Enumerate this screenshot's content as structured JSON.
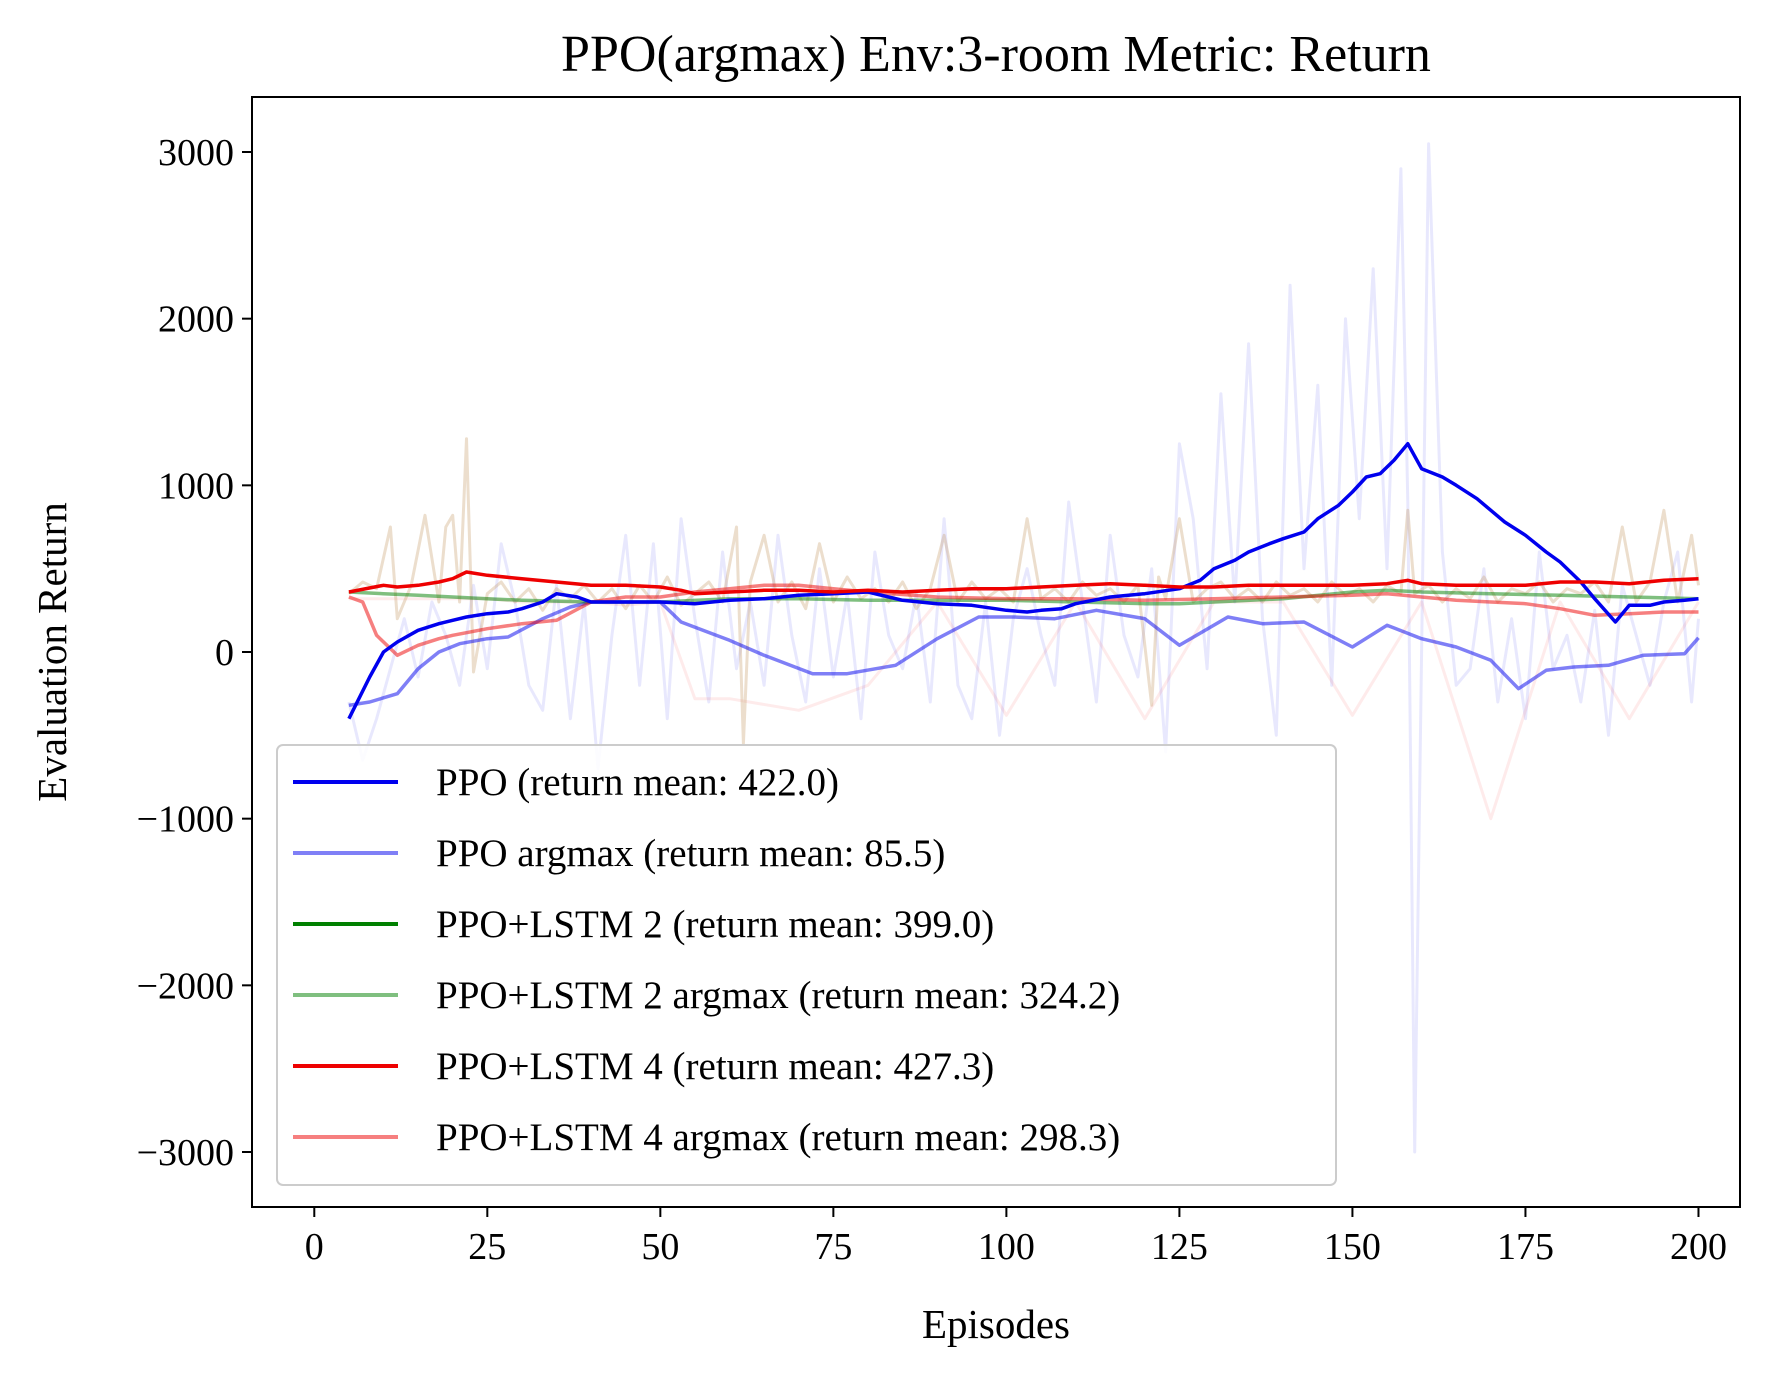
{
  "chart_data": {
    "type": "line",
    "title": "PPO(argmax)  Env:3-room  Metric: Return",
    "xlabel": "Episodes",
    "ylabel": "Evaluation Return",
    "xlim": [
      -9,
      206
    ],
    "ylim": [
      -3330,
      3330
    ],
    "xticks": [
      0,
      25,
      50,
      75,
      100,
      125,
      150,
      175,
      200
    ],
    "yticks": [
      -3000,
      -2000,
      -1000,
      0,
      1000,
      2000,
      3000
    ],
    "ytick_labels": [
      "−3000",
      "−2000",
      "−1000",
      "0",
      "1000",
      "2000",
      "3000"
    ],
    "grid": false,
    "legend_position": "lower-left",
    "series": [
      {
        "name": "PPO (return mean: 422.0)",
        "color": "#0000ee",
        "opacity": 1.0,
        "width": 3.5,
        "x": [
          5,
          8,
          10,
          12,
          15,
          18,
          20,
          22,
          25,
          28,
          30,
          33,
          35,
          38,
          40,
          45,
          50,
          55,
          60,
          65,
          70,
          75,
          80,
          85,
          90,
          95,
          100,
          103,
          105,
          108,
          110,
          115,
          120,
          125,
          128,
          130,
          133,
          135,
          138,
          140,
          143,
          145,
          148,
          150,
          152,
          154,
          156,
          158,
          160,
          163,
          165,
          168,
          170,
          172,
          175,
          178,
          180,
          183,
          185,
          188,
          190,
          193,
          195,
          198,
          200
        ],
        "y": [
          -400,
          -150,
          0,
          60,
          130,
          170,
          190,
          210,
          230,
          240,
          260,
          300,
          350,
          330,
          300,
          300,
          300,
          290,
          310,
          320,
          340,
          350,
          360,
          310,
          290,
          280,
          250,
          240,
          250,
          260,
          290,
          330,
          350,
          380,
          430,
          500,
          550,
          600,
          650,
          680,
          720,
          800,
          880,
          960,
          1050,
          1070,
          1150,
          1250,
          1100,
          1050,
          1000,
          920,
          850,
          780,
          700,
          600,
          540,
          420,
          320,
          180,
          280,
          280,
          300,
          310,
          320
        ]
      },
      {
        "name": "PPO argmax (return mean: 85.5)",
        "color": "#0000ee",
        "opacity": 0.5,
        "width": 3.5,
        "x": [
          5,
          8,
          12,
          15,
          18,
          21,
          25,
          28,
          33,
          37,
          40,
          50,
          53,
          60,
          65,
          72,
          77,
          84,
          90,
          96,
          101,
          107,
          113,
          120,
          125,
          132,
          137,
          143,
          150,
          155,
          160,
          165,
          170,
          174,
          178,
          182,
          187,
          192,
          198,
          200
        ],
        "y": [
          -320,
          -300,
          -250,
          -100,
          0,
          50,
          80,
          90,
          200,
          270,
          300,
          300,
          180,
          70,
          -20,
          -130,
          -130,
          -80,
          80,
          210,
          210,
          200,
          250,
          200,
          40,
          210,
          170,
          180,
          30,
          160,
          80,
          30,
          -50,
          -220,
          -110,
          -90,
          -80,
          -20,
          -10,
          85
        ]
      },
      {
        "name": "PPO+LSTM 2 (return mean: 399.0)",
        "color": "#008000",
        "opacity": 1.0,
        "width": 3.5,
        "x": [],
        "y": []
      },
      {
        "name": "PPO+LSTM 2 argmax (return mean: 324.2)",
        "color": "#008000",
        "opacity": 0.5,
        "width": 3.5,
        "x": [
          5,
          10,
          15,
          20,
          25,
          30,
          40,
          50,
          60,
          70,
          80,
          90,
          100,
          110,
          120,
          125,
          130,
          140,
          150,
          155,
          160,
          170,
          180,
          190,
          200
        ],
        "y": [
          360,
          350,
          340,
          330,
          320,
          310,
          300,
          300,
          320,
          320,
          310,
          310,
          310,
          300,
          290,
          290,
          300,
          320,
          360,
          370,
          360,
          350,
          340,
          330,
          320
        ]
      },
      {
        "name": "PPO+LSTM 4 (return mean: 427.3)",
        "color": "#ee0000",
        "opacity": 1.0,
        "width": 3.5,
        "x": [
          5,
          10,
          12,
          15,
          18,
          20,
          22,
          25,
          30,
          35,
          40,
          45,
          50,
          53,
          55,
          60,
          65,
          70,
          75,
          80,
          85,
          90,
          95,
          100,
          105,
          110,
          115,
          120,
          125,
          130,
          135,
          140,
          145,
          150,
          155,
          158,
          160,
          165,
          170,
          175,
          180,
          185,
          190,
          195,
          200
        ],
        "y": [
          360,
          400,
          390,
          400,
          420,
          440,
          480,
          460,
          440,
          420,
          400,
          400,
          390,
          370,
          350,
          360,
          370,
          370,
          360,
          370,
          360,
          370,
          380,
          380,
          390,
          400,
          410,
          400,
          390,
          390,
          400,
          400,
          400,
          400,
          410,
          430,
          410,
          400,
          400,
          400,
          420,
          420,
          410,
          430,
          440
        ]
      },
      {
        "name": "PPO+LSTM 4 argmax (return mean: 298.3)",
        "color": "#ee0000",
        "opacity": 0.5,
        "width": 3.5,
        "x": [
          5,
          7,
          9,
          12,
          15,
          18,
          20,
          25,
          30,
          35,
          40,
          45,
          50,
          55,
          60,
          65,
          70,
          75,
          80,
          90,
          100,
          110,
          120,
          130,
          140,
          150,
          155,
          160,
          165,
          170,
          175,
          180,
          185,
          190,
          195,
          200
        ],
        "y": [
          330,
          300,
          100,
          -20,
          40,
          80,
          100,
          140,
          170,
          190,
          300,
          330,
          330,
          360,
          380,
          400,
          400,
          380,
          360,
          330,
          320,
          320,
          310,
          320,
          330,
          340,
          350,
          330,
          310,
          300,
          290,
          260,
          220,
          230,
          240,
          240
        ]
      }
    ],
    "background_traces": [
      {
        "color": "#0000ee",
        "opacity": 0.09,
        "width": 3,
        "x": [
          5,
          7,
          9,
          11,
          13,
          15,
          17,
          19,
          21,
          23,
          25,
          27,
          29,
          31,
          33,
          35,
          37,
          39,
          41,
          43,
          45,
          47,
          49,
          51,
          53,
          55,
          57,
          59,
          61,
          63,
          65,
          67,
          69,
          71,
          73,
          75,
          77,
          79,
          81,
          83,
          85,
          87,
          89,
          91,
          93,
          95,
          97,
          99,
          101,
          103,
          105,
          107,
          109,
          111,
          113,
          115,
          117,
          119,
          121,
          123,
          125,
          127,
          129,
          131,
          133,
          135,
          137,
          139,
          141,
          143,
          145,
          147,
          149,
          151,
          153,
          155,
          157,
          158,
          159,
          161,
          163,
          165,
          167,
          169,
          171,
          173,
          175,
          177,
          179,
          181,
          183,
          185,
          187,
          189,
          191,
          193,
          195,
          197,
          199,
          200
        ],
        "y": [
          -300,
          -650,
          -400,
          -100,
          200,
          -150,
          300,
          100,
          -200,
          400,
          -100,
          650,
          300,
          -200,
          -350,
          400,
          -400,
          300,
          -700,
          100,
          700,
          -200,
          650,
          -400,
          800,
          200,
          -300,
          600,
          -100,
          300,
          -200,
          700,
          100,
          -300,
          500,
          -150,
          350,
          -400,
          600,
          100,
          -100,
          350,
          -300,
          800,
          -200,
          -400,
          300,
          -500,
          200,
          500,
          100,
          -200,
          900,
          300,
          -300,
          700,
          100,
          -150,
          500,
          -600,
          1250,
          800,
          -100,
          1550,
          300,
          1850,
          200,
          -500,
          2200,
          500,
          1600,
          -200,
          2000,
          800,
          2300,
          500,
          2900,
          900,
          -3000,
          3050,
          600,
          -200,
          -100,
          500,
          -300,
          200,
          -400,
          600,
          -100,
          100,
          -300,
          250,
          -500,
          400,
          100,
          -200,
          300,
          600,
          -300,
          200
        ]
      },
      {
        "color": "#ee0000",
        "opacity": 0.08,
        "width": 3,
        "x": [
          5,
          25,
          30,
          40,
          45,
          50,
          55,
          60,
          70,
          80,
          90,
          100,
          110,
          120,
          130,
          140,
          150,
          160,
          170,
          180,
          190,
          200
        ],
        "y": [
          320,
          320,
          300,
          300,
          280,
          300,
          -280,
          -280,
          -350,
          -200,
          300,
          -380,
          300,
          -400,
          300,
          300,
          -380,
          300,
          -1000,
          300,
          -400,
          300
        ]
      },
      {
        "color": "#c8a070",
        "opacity": 0.35,
        "width": 3,
        "x": [
          5,
          7,
          9,
          11,
          12,
          14,
          16,
          18,
          19,
          20,
          21,
          22,
          23,
          25,
          27,
          29,
          31,
          33,
          35,
          37,
          39,
          41,
          43,
          45,
          47,
          49,
          51,
          53,
          55,
          57,
          59,
          61,
          62,
          63,
          65,
          67,
          69,
          71,
          73,
          75,
          77,
          79,
          81,
          83,
          85,
          87,
          89,
          91,
          93,
          95,
          97,
          99,
          101,
          103,
          105,
          107,
          109,
          111,
          113,
          115,
          117,
          119,
          121,
          122,
          123,
          125,
          127,
          129,
          131,
          133,
          135,
          137,
          139,
          141,
          143,
          145,
          147,
          149,
          151,
          153,
          155,
          157,
          158,
          159,
          161,
          163,
          165,
          167,
          169,
          171,
          173,
          175,
          177,
          179,
          181,
          183,
          185,
          187,
          189,
          191,
          193,
          195,
          197,
          199,
          200
        ],
        "y": [
          350,
          420,
          380,
          750,
          200,
          400,
          820,
          300,
          750,
          820,
          300,
          1280,
          -120,
          350,
          420,
          300,
          380,
          250,
          380,
          320,
          400,
          300,
          380,
          260,
          400,
          300,
          450,
          280,
          350,
          420,
          300,
          750,
          -550,
          420,
          700,
          300,
          420,
          260,
          650,
          300,
          450,
          320,
          380,
          300,
          420,
          260,
          380,
          700,
          300,
          420,
          320,
          380,
          300,
          800,
          320,
          380,
          300,
          420,
          340,
          380,
          300,
          400,
          -320,
          450,
          320,
          800,
          300,
          380,
          420,
          320,
          380,
          300,
          420,
          340,
          380,
          300,
          420,
          340,
          380,
          300,
          400,
          350,
          850,
          350,
          400,
          300,
          380,
          320,
          450,
          300,
          380,
          350,
          420,
          300,
          380,
          350,
          420,
          300,
          750,
          300,
          420,
          850,
          300,
          700,
          400
        ]
      }
    ]
  }
}
